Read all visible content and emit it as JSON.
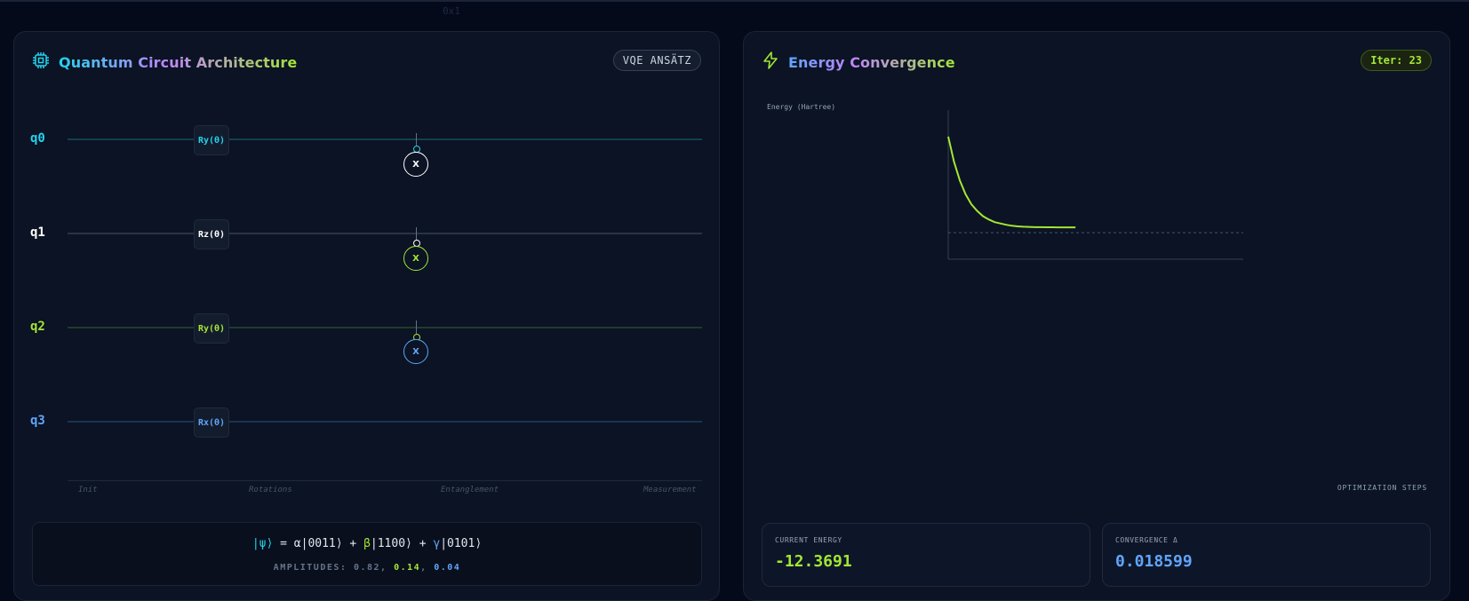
{
  "background_text": "0x1",
  "circuit_panel": {
    "title": "Quantum Circuit Architecture",
    "icon": "cpu-chip-icon",
    "badge": "VQE ANSÄTZ",
    "qubits": [
      {
        "label": "q0",
        "gate": "Ry(θ)",
        "color": "#22d3ee"
      },
      {
        "label": "q1",
        "gate": "Rz(θ)",
        "color": "#ffffff"
      },
      {
        "label": "q2",
        "gate": "Ry(θ)",
        "color": "#a3e635"
      },
      {
        "label": "q3",
        "gate": "Rx(θ)",
        "color": "#60a5fa"
      }
    ],
    "cnot_label": "X",
    "stages": [
      "Init",
      "Rotations",
      "Entanglement",
      "Measurement"
    ],
    "state": {
      "psi": "|ψ⟩",
      "equals": " = ",
      "alpha": "α|0011⟩",
      "plus1": " + ",
      "beta": "β|1100⟩",
      "plus2": " + ",
      "gamma": "γ|0101⟩",
      "amps_label": "AMPLITUDES:",
      "amp1": "0.82",
      "amp2": "0.14",
      "amp3": "0.04"
    }
  },
  "energy_panel": {
    "title": "Energy Convergence",
    "icon": "lightning-bolt-icon",
    "badge": "Iter: 23",
    "ylabel": "Energy (Hartree)",
    "xlabel": "OPTIMIZATION STEPS",
    "current_energy": {
      "label": "CURRENT ENERGY",
      "value": "-12.3691"
    },
    "convergence": {
      "label": "CONVERGENCE Δ",
      "value": "0.018599"
    }
  },
  "chart_data": {
    "type": "line",
    "title": "",
    "ylabel": "Energy (Hartree)",
    "xlabel": "OPTIMIZATION STEPS",
    "series": [
      {
        "values": [
          -11.0,
          -11.38,
          -11.66,
          -11.87,
          -12.02,
          -12.12,
          -12.2,
          -12.25,
          -12.29,
          -12.31,
          -12.33,
          -12.345,
          -12.355,
          -12.36,
          -12.363,
          -12.366,
          -12.367,
          -12.368,
          -12.3685,
          -12.369,
          -12.369,
          -12.369,
          -12.3691
        ]
      }
    ],
    "reference_line": -12.45,
    "ylim": [
      -12.85,
      -10.6
    ],
    "xlim": [
      0,
      51
    ],
    "line_color": "#a3e635",
    "grid": false
  }
}
